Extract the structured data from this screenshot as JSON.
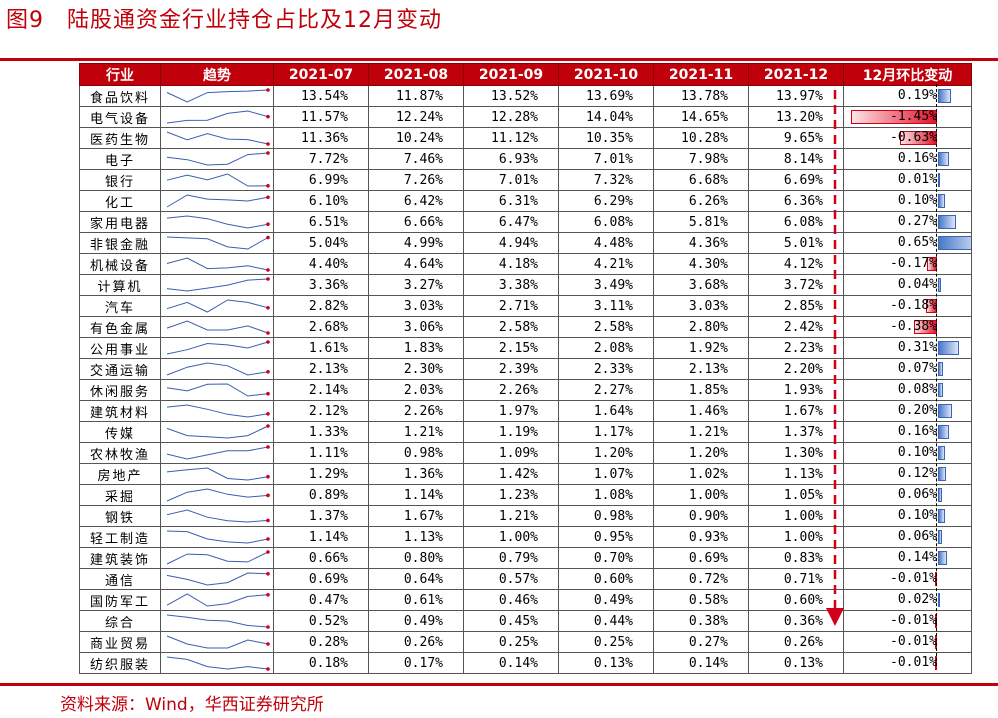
{
  "title": "图9　陆股通资金行业持仓占比及12月变动",
  "source": "资料来源：Wind，华西证券研究所",
  "colors": {
    "accent": "#c0000a",
    "positive_bar": "#4a78c8",
    "negative_bar": "#e0142a"
  },
  "chart_data": {
    "type": "table",
    "headers": [
      "行业",
      "趋势",
      "2021-07",
      "2021-08",
      "2021-09",
      "2021-10",
      "2021-11",
      "2021-12",
      "12月环比变动"
    ],
    "months": [
      "2021-07",
      "2021-08",
      "2021-09",
      "2021-10",
      "2021-11",
      "2021-12"
    ],
    "rows": [
      {
        "industry": "食品饮料",
        "values": [
          "13.54%",
          "11.87%",
          "13.52%",
          "13.69%",
          "13.78%",
          "13.97%"
        ],
        "change": "0.19%",
        "change_value": 0.19
      },
      {
        "industry": "电气设备",
        "values": [
          "11.57%",
          "12.24%",
          "12.28%",
          "14.04%",
          "14.65%",
          "13.20%"
        ],
        "change": "-1.45%",
        "change_value": -1.45
      },
      {
        "industry": "医药生物",
        "values": [
          "11.36%",
          "10.24%",
          "11.12%",
          "10.35%",
          "10.28%",
          "9.65%"
        ],
        "change": "-0.63%",
        "change_value": -0.63
      },
      {
        "industry": "电子",
        "values": [
          "7.72%",
          "7.46%",
          "6.93%",
          "7.01%",
          "7.98%",
          "8.14%"
        ],
        "change": "0.16%",
        "change_value": 0.16
      },
      {
        "industry": "银行",
        "values": [
          "6.99%",
          "7.26%",
          "7.01%",
          "7.32%",
          "6.68%",
          "6.69%"
        ],
        "change": "0.01%",
        "change_value": 0.01
      },
      {
        "industry": "化工",
        "values": [
          "6.10%",
          "6.42%",
          "6.31%",
          "6.29%",
          "6.26%",
          "6.36%"
        ],
        "change": "0.10%",
        "change_value": 0.1
      },
      {
        "industry": "家用电器",
        "values": [
          "6.51%",
          "6.66%",
          "6.47%",
          "6.08%",
          "5.81%",
          "6.08%"
        ],
        "change": "0.27%",
        "change_value": 0.27
      },
      {
        "industry": "非银金融",
        "values": [
          "5.04%",
          "4.99%",
          "4.94%",
          "4.48%",
          "4.36%",
          "5.01%"
        ],
        "change": "0.65%",
        "change_value": 0.65
      },
      {
        "industry": "机械设备",
        "values": [
          "4.40%",
          "4.64%",
          "4.18%",
          "4.21%",
          "4.30%",
          "4.12%"
        ],
        "change": "-0.17%",
        "change_value": -0.17
      },
      {
        "industry": "计算机",
        "values": [
          "3.36%",
          "3.27%",
          "3.38%",
          "3.49%",
          "3.68%",
          "3.72%"
        ],
        "change": "0.04%",
        "change_value": 0.04
      },
      {
        "industry": "汽车",
        "values": [
          "2.82%",
          "3.03%",
          "2.71%",
          "3.11%",
          "3.03%",
          "2.85%"
        ],
        "change": "-0.18%",
        "change_value": -0.18
      },
      {
        "industry": "有色金属",
        "values": [
          "2.68%",
          "3.06%",
          "2.58%",
          "2.58%",
          "2.80%",
          "2.42%"
        ],
        "change": "-0.38%",
        "change_value": -0.38
      },
      {
        "industry": "公用事业",
        "values": [
          "1.61%",
          "1.83%",
          "2.15%",
          "2.08%",
          "1.92%",
          "2.23%"
        ],
        "change": "0.31%",
        "change_value": 0.31
      },
      {
        "industry": "交通运输",
        "values": [
          "2.13%",
          "2.30%",
          "2.39%",
          "2.33%",
          "2.13%",
          "2.20%"
        ],
        "change": "0.07%",
        "change_value": 0.07
      },
      {
        "industry": "休闲服务",
        "values": [
          "2.14%",
          "2.03%",
          "2.26%",
          "2.27%",
          "1.85%",
          "1.93%"
        ],
        "change": "0.08%",
        "change_value": 0.08
      },
      {
        "industry": "建筑材料",
        "values": [
          "2.12%",
          "2.26%",
          "1.97%",
          "1.64%",
          "1.46%",
          "1.67%"
        ],
        "change": "0.20%",
        "change_value": 0.2
      },
      {
        "industry": "传媒",
        "values": [
          "1.33%",
          "1.21%",
          "1.19%",
          "1.17%",
          "1.21%",
          "1.37%"
        ],
        "change": "0.16%",
        "change_value": 0.16
      },
      {
        "industry": "农林牧渔",
        "values": [
          "1.11%",
          "0.98%",
          "1.09%",
          "1.20%",
          "1.20%",
          "1.30%"
        ],
        "change": "0.10%",
        "change_value": 0.1
      },
      {
        "industry": "房地产",
        "values": [
          "1.29%",
          "1.36%",
          "1.42%",
          "1.07%",
          "1.02%",
          "1.13%"
        ],
        "change": "0.12%",
        "change_value": 0.12
      },
      {
        "industry": "采掘",
        "values": [
          "0.89%",
          "1.14%",
          "1.23%",
          "1.08%",
          "1.00%",
          "1.05%"
        ],
        "change": "0.06%",
        "change_value": 0.06
      },
      {
        "industry": "钢铁",
        "values": [
          "1.37%",
          "1.67%",
          "1.21%",
          "0.98%",
          "0.90%",
          "1.00%"
        ],
        "change": "0.10%",
        "change_value": 0.1
      },
      {
        "industry": "轻工制造",
        "values": [
          "1.14%",
          "1.13%",
          "1.00%",
          "0.95%",
          "0.93%",
          "1.00%"
        ],
        "change": "0.06%",
        "change_value": 0.06
      },
      {
        "industry": "建筑装饰",
        "values": [
          "0.66%",
          "0.80%",
          "0.79%",
          "0.70%",
          "0.69%",
          "0.83%"
        ],
        "change": "0.14%",
        "change_value": 0.14
      },
      {
        "industry": "通信",
        "values": [
          "0.69%",
          "0.64%",
          "0.57%",
          "0.60%",
          "0.72%",
          "0.71%"
        ],
        "change": "-0.01%",
        "change_value": -0.01
      },
      {
        "industry": "国防军工",
        "values": [
          "0.47%",
          "0.61%",
          "0.46%",
          "0.49%",
          "0.58%",
          "0.60%"
        ],
        "change": "0.02%",
        "change_value": 0.02
      },
      {
        "industry": "综合",
        "values": [
          "0.52%",
          "0.49%",
          "0.45%",
          "0.44%",
          "0.38%",
          "0.36%"
        ],
        "change": "-0.01%",
        "change_value": -0.01
      },
      {
        "industry": "商业贸易",
        "values": [
          "0.28%",
          "0.26%",
          "0.25%",
          "0.25%",
          "0.27%",
          "0.26%"
        ],
        "change": "-0.01%",
        "change_value": -0.01
      },
      {
        "industry": "纺织服装",
        "values": [
          "0.18%",
          "0.17%",
          "0.14%",
          "0.13%",
          "0.14%",
          "0.13%"
        ],
        "change": "-0.01%",
        "change_value": -0.01
      }
    ]
  }
}
